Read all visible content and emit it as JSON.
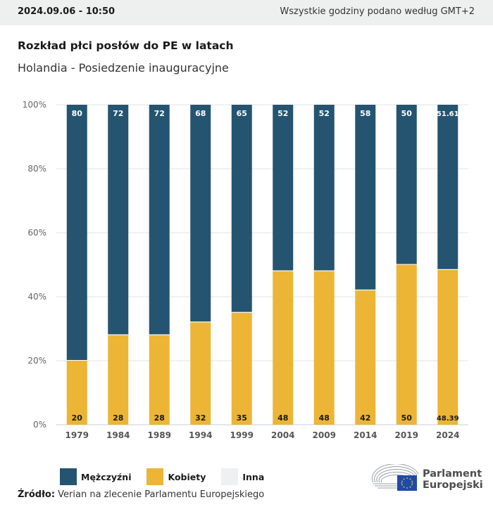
{
  "header": {
    "timestamp": "2024.09.06 - 10:50",
    "timezone_note": "Wszystkie godziny podano według GMT+2"
  },
  "title": "Rozkład płci posłów do PE w latach",
  "subtitle": "Holandia - Posiedzenie inauguracyjne",
  "colors": {
    "men": "#245470",
    "women": "#ecb535",
    "other": "#eef0f2",
    "grid": "#e3e3e3",
    "axis": "#c5cee0"
  },
  "chart_data": {
    "type": "bar",
    "stacked": true,
    "title": "Rozkład płci posłów do PE w latach",
    "subtitle": "Holandia - Posiedzenie inauguracyjne",
    "xlabel": "",
    "ylabel": "",
    "ylim": [
      0,
      100
    ],
    "yticks": [
      "0%",
      "20%",
      "40%",
      "60%",
      "80%",
      "100%"
    ],
    "grid": true,
    "categories": [
      "1979",
      "1984",
      "1989",
      "1994",
      "1999",
      "2004",
      "2009",
      "2014",
      "2019",
      "2024"
    ],
    "series": [
      {
        "name": "Kobiety",
        "key": "women",
        "values": [
          20,
          28,
          28,
          32,
          35,
          48,
          48,
          42,
          50,
          48.39
        ],
        "labels": [
          "20",
          "28",
          "28",
          "32",
          "35",
          "48",
          "48",
          "42",
          "50",
          "48.39"
        ]
      },
      {
        "name": "Mężczyźni",
        "key": "men",
        "values": [
          80,
          72,
          72,
          68,
          65,
          52,
          52,
          58,
          50,
          51.61
        ],
        "labels": [
          "80",
          "72",
          "72",
          "68",
          "65",
          "52",
          "52",
          "58",
          "50",
          "51.61"
        ]
      },
      {
        "name": "Inna",
        "key": "other",
        "values": [
          0,
          0,
          0,
          0,
          0,
          0,
          0,
          0,
          0,
          0
        ]
      }
    ],
    "legend": {
      "placement": "bottom-left",
      "entries": [
        "Mężczyźni",
        "Kobiety",
        "Inna"
      ]
    }
  },
  "legend": [
    {
      "label": "Mężczyźni",
      "key": "men"
    },
    {
      "label": "Kobiety",
      "key": "women"
    },
    {
      "label": "Inna",
      "key": "other"
    }
  ],
  "source": {
    "label": "Źródło:",
    "text": " Verian na zlecenie Parlamentu Europejskiego"
  },
  "logo": {
    "line1": "Parlament",
    "line2": "Europejski"
  }
}
